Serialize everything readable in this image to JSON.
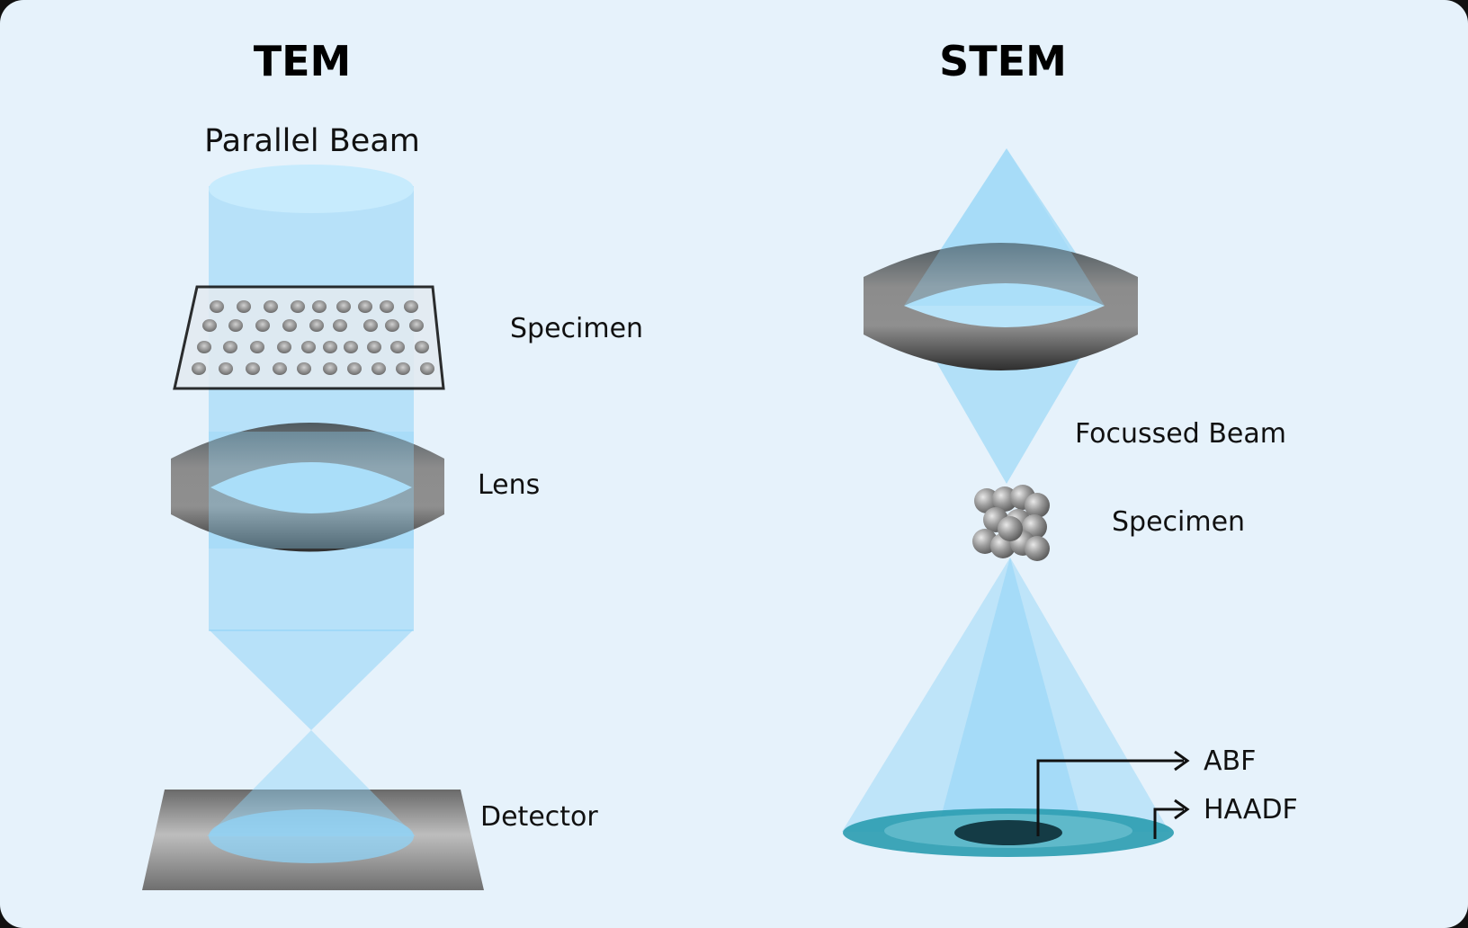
{
  "tem": {
    "title": "TEM",
    "beam_label": "Parallel Beam",
    "specimen_label": "Specimen",
    "lens_label": "Lens",
    "detector_label": "Detector"
  },
  "stem": {
    "title": "STEM",
    "beam_label": "Focussed Beam",
    "specimen_label": "Specimen",
    "abf_label": "ABF",
    "haadf_label": "HAADF"
  },
  "colors": {
    "background": "#e6f2fb",
    "beam": "#8fd3f7",
    "lens_dark": "#3e3e3e",
    "lens_light": "#9a9a9a",
    "detector_teal": "#2a9cb0"
  }
}
